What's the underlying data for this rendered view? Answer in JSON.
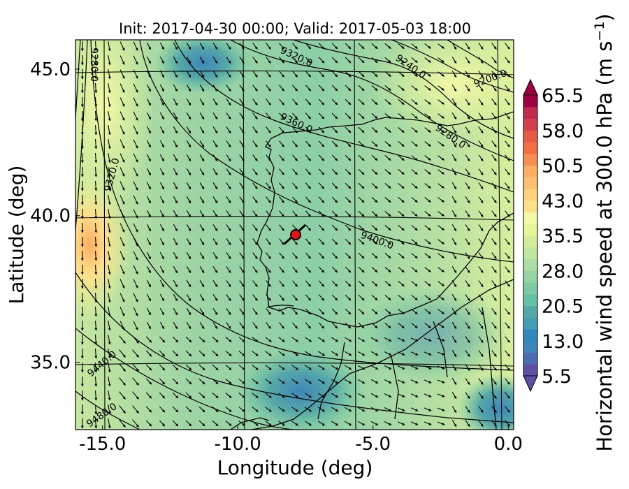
{
  "title": "Init: 2017-04-30 00:00; Valid: 2017-05-03 18:00",
  "xlabel": "Longitude (deg)",
  "ylabel": "Latitude (deg)",
  "colorbar_label": "Horizontal wind speed at 300.0 hPa (m s$^{-1}$)",
  "colorbar_label_parts": {
    "main": "Horizontal wind speed at 300.0 hPa (m s",
    "sup": "−1",
    "close": ")"
  },
  "map": {
    "lon_range": [
      -16.0,
      0.2
    ],
    "lat_range": [
      32.7,
      46.0
    ],
    "x_ticks": [
      {
        "value": -15.0,
        "label": "-15.0"
      },
      {
        "value": -10.0,
        "label": "-10.0"
      },
      {
        "value": -5.0,
        "label": "-5.0"
      },
      {
        "value": 0.0,
        "label": "0.0"
      }
    ],
    "y_ticks": [
      {
        "value": 35.0,
        "label": "35.0"
      },
      {
        "value": 40.0,
        "label": "40.0"
      },
      {
        "value": 45.0,
        "label": "45.0"
      }
    ],
    "marker": {
      "lon": -7.6,
      "lat": 39.3,
      "color": "#e8140f"
    },
    "contours": [
      {
        "label": "9200.0"
      },
      {
        "label": "9240.0"
      },
      {
        "label": "9280.0"
      },
      {
        "label": "9280.0"
      },
      {
        "label": "9320.0"
      },
      {
        "label": "9320.0"
      },
      {
        "label": "9360.0"
      },
      {
        "label": "9400.0"
      },
      {
        "label": "9440.0"
      },
      {
        "label": "9480.0"
      }
    ]
  },
  "colorbar": {
    "ticks": [
      "5.5",
      "13.0",
      "20.5",
      "28.0",
      "35.5",
      "43.0",
      "50.5",
      "58.0",
      "65.5"
    ],
    "colors": [
      "#5e4fa2",
      "#4c6bb0",
      "#3d87b8",
      "#3288bd",
      "#439eb4",
      "#56a8a8",
      "#66c2a5",
      "#7ccba4",
      "#94d4a4",
      "#abdda4",
      "#c0e6a0",
      "#d4ed9b",
      "#e6f598",
      "#f3f9a6",
      "#fee08b",
      "#fed27a",
      "#fdc06e",
      "#fdae61",
      "#f98e52",
      "#f46d43",
      "#e85a44",
      "#d53e4f",
      "#c12a4e",
      "#9e0142"
    ]
  },
  "legend_colors": {
    "background_mid": "#7ccba4",
    "background_high": "#e6f598",
    "background_low": "#3288bd",
    "peak": "#fdae61"
  }
}
